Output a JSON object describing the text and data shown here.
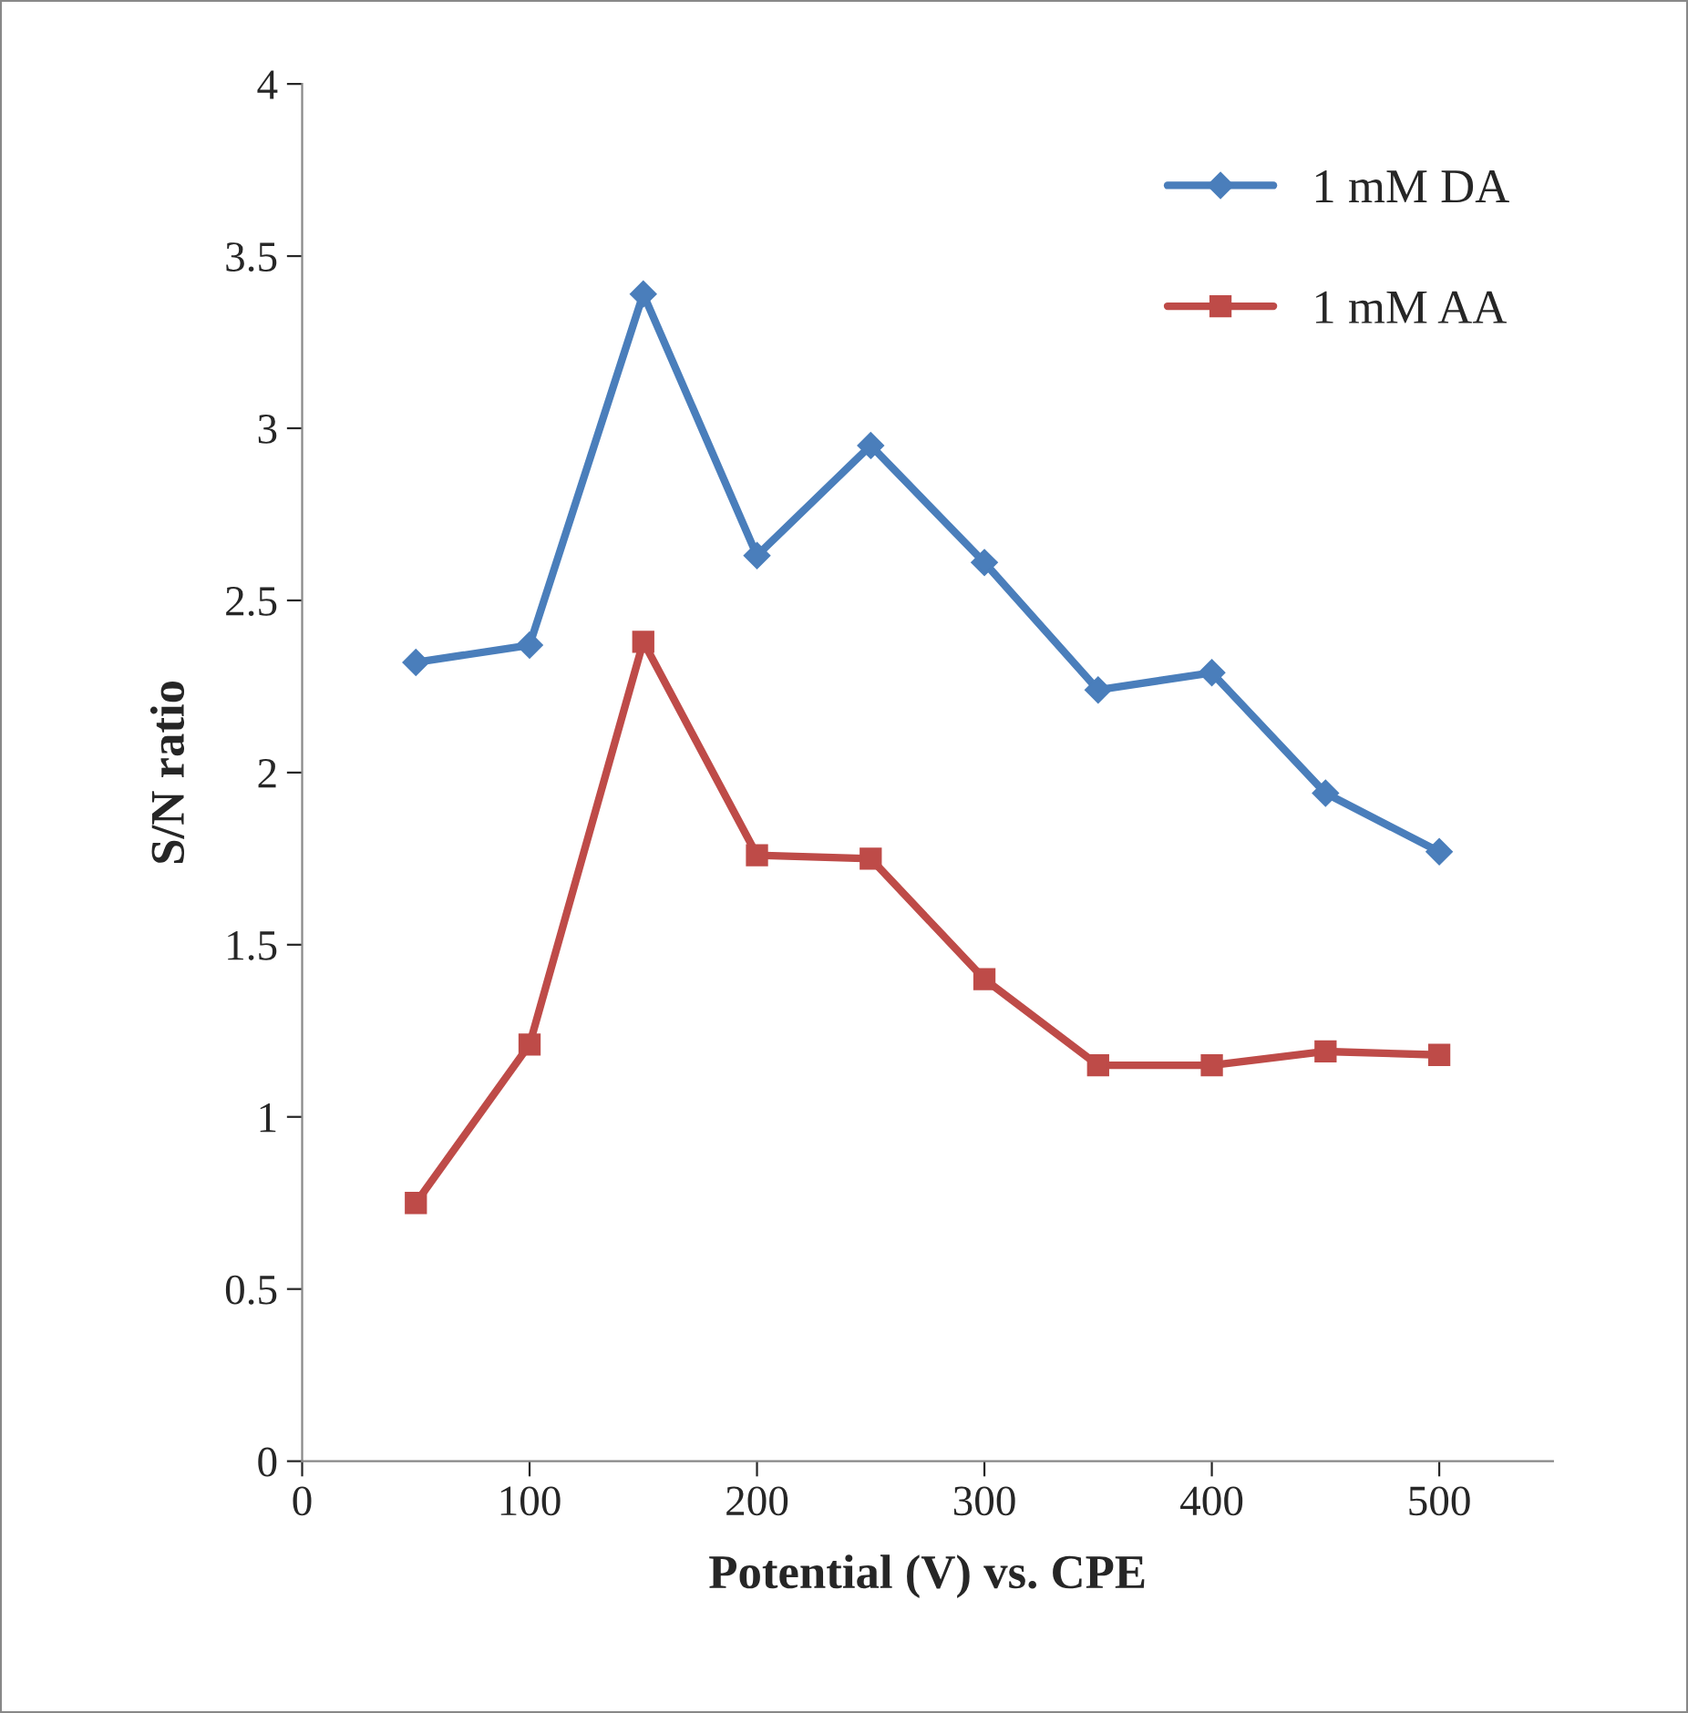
{
  "chart_data": {
    "type": "line",
    "xlabel": "Potential (V) vs. CPE",
    "ylabel": "S/N ratio",
    "x": [
      50,
      100,
      150,
      200,
      250,
      300,
      350,
      400,
      450,
      500
    ],
    "series": [
      {
        "name": "1 mM DA",
        "color": "#4a7ebb",
        "marker": "diamond",
        "values": [
          2.32,
          2.37,
          3.39,
          2.63,
          2.95,
          2.61,
          2.24,
          2.29,
          1.94,
          1.77
        ]
      },
      {
        "name": "1 mM AA",
        "color": "#be4b48",
        "marker": "square",
        "values": [
          0.75,
          1.21,
          2.38,
          1.76,
          1.75,
          1.4,
          1.15,
          1.15,
          1.19,
          1.18
        ]
      }
    ],
    "xlim": [
      0,
      550
    ],
    "xticks": [
      0,
      100,
      200,
      300,
      400,
      500
    ],
    "ylim": [
      0,
      4
    ],
    "yticks": [
      0,
      0.5,
      1,
      1.5,
      2,
      2.5,
      3,
      3.5,
      4
    ],
    "grid": false,
    "legend": "top right",
    "line_style": "solid"
  }
}
